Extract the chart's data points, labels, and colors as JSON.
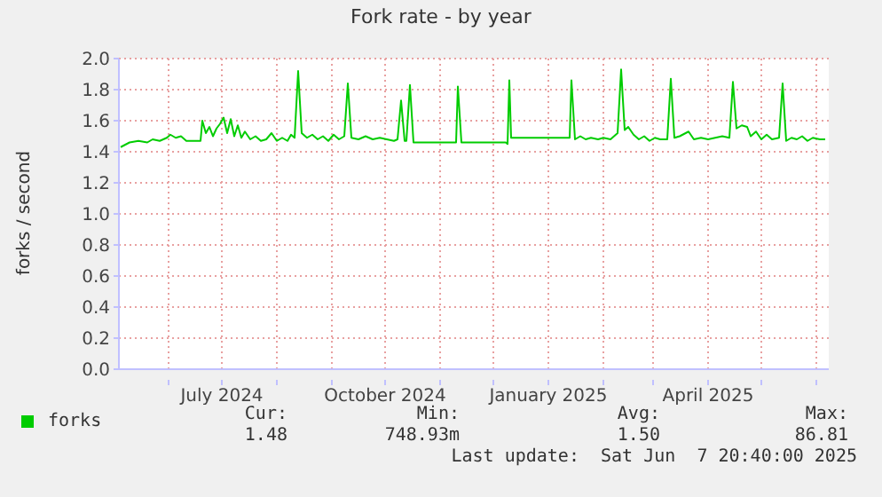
{
  "chart_data": {
    "type": "line",
    "title": "Fork rate - by year",
    "ylabel": "forks / second",
    "xlim": [
      "2024-05-04",
      "2025-06-08"
    ],
    "xticks": [
      {
        "value": "2024-06-01",
        "label": null
      },
      {
        "value": "2024-07-01",
        "label": "July 2024"
      },
      {
        "value": "2024-08-01",
        "label": null
      },
      {
        "value": "2024-09-01",
        "label": null
      },
      {
        "value": "2024-10-01",
        "label": "October 2024"
      },
      {
        "value": "2024-11-01",
        "label": null
      },
      {
        "value": "2024-12-01",
        "label": null
      },
      {
        "value": "2025-01-01",
        "label": "January 2025"
      },
      {
        "value": "2025-02-01",
        "label": null
      },
      {
        "value": "2025-03-01",
        "label": null
      },
      {
        "value": "2025-04-01",
        "label": "April 2025"
      },
      {
        "value": "2025-05-01",
        "label": null
      },
      {
        "value": "2025-06-01",
        "label": null
      }
    ],
    "ylim": [
      0,
      2
    ],
    "yticks": [
      {
        "value": 0,
        "label": "0.0"
      },
      {
        "value": 0.2,
        "label": "0.2"
      },
      {
        "value": 0.4,
        "label": "0.4"
      },
      {
        "value": 0.6,
        "label": "0.6"
      },
      {
        "value": 0.8,
        "label": "0.8"
      },
      {
        "value": 1,
        "label": "1.0"
      },
      {
        "value": 1.2,
        "label": "1.2"
      },
      {
        "value": 1.4,
        "label": "1.4"
      },
      {
        "value": 1.6,
        "label": "1.6"
      },
      {
        "value": 1.8,
        "label": "1.8"
      },
      {
        "value": 2,
        "label": "2.0"
      }
    ],
    "grid": true,
    "legend": "bottom left",
    "marker": "none",
    "line_style": "solid",
    "annotations": [
      "Cur:",
      "Min:",
      "Avg:",
      "Max:",
      "1.48",
      "748.93m",
      "1.50",
      "86.81",
      "Last update:  Sat Jun  7 20:40:00 2025"
    ],
    "series": [
      {
        "name": "forks",
        "color": "#00cc00",
        "x": [
          "2024-05-05",
          "2024-05-10",
          "2024-05-15",
          "2024-05-20",
          "2024-05-23",
          "2024-05-27",
          "2024-05-31",
          "2024-06-02",
          "2024-06-05",
          "2024-06-08",
          "2024-06-11",
          "2024-06-15",
          "2024-06-19",
          "2024-06-20",
          "2024-06-22",
          "2024-06-24",
          "2024-06-26",
          "2024-06-28",
          "2024-06-30",
          "2024-07-02",
          "2024-07-04",
          "2024-07-06",
          "2024-07-08",
          "2024-07-10",
          "2024-07-12",
          "2024-07-14",
          "2024-07-17",
          "2024-07-20",
          "2024-07-23",
          "2024-07-26",
          "2024-07-29",
          "2024-08-01",
          "2024-08-04",
          "2024-08-07",
          "2024-08-09",
          "2024-08-11",
          "2024-08-13",
          "2024-08-15",
          "2024-08-18",
          "2024-08-21",
          "2024-08-24",
          "2024-08-27",
          "2024-08-30",
          "2024-09-02",
          "2024-09-05",
          "2024-09-08",
          "2024-09-10",
          "2024-09-12",
          "2024-09-16",
          "2024-09-20",
          "2024-09-24",
          "2024-09-28",
          "2024-10-02",
          "2024-10-06",
          "2024-10-08",
          "2024-10-10",
          "2024-10-12",
          "2024-10-13",
          "2024-10-15",
          "2024-10-17",
          "2024-10-29",
          "2024-11-10",
          "2024-11-11",
          "2024-11-13",
          "2024-12-08",
          "2024-12-09",
          "2024-12-10",
          "2024-12-11",
          "2025-01-13",
          "2025-01-14",
          "2025-01-16",
          "2025-01-19",
          "2025-01-22",
          "2025-01-25",
          "2025-01-29",
          "2025-02-01",
          "2025-02-05",
          "2025-02-09",
          "2025-02-11",
          "2025-02-13",
          "2025-02-15",
          "2025-02-18",
          "2025-02-21",
          "2025-02-24",
          "2025-02-27",
          "2025-03-02",
          "2025-03-05",
          "2025-03-09",
          "2025-03-11",
          "2025-03-13",
          "2025-03-16",
          "2025-03-21",
          "2025-03-24",
          "2025-03-28",
          "2025-04-01",
          "2025-04-05",
          "2025-04-09",
          "2025-04-13",
          "2025-04-15",
          "2025-04-17",
          "2025-04-20",
          "2025-04-23",
          "2025-04-25",
          "2025-04-28",
          "2025-05-01",
          "2025-05-04",
          "2025-05-07",
          "2025-05-11",
          "2025-05-13",
          "2025-05-15",
          "2025-05-18",
          "2025-05-21",
          "2025-05-24",
          "2025-05-27",
          "2025-05-30",
          "2025-06-03",
          "2025-06-06"
        ],
        "values": [
          1.43,
          1.46,
          1.47,
          1.46,
          1.48,
          1.47,
          1.49,
          1.51,
          1.49,
          1.5,
          1.47,
          1.47,
          1.47,
          1.6,
          1.52,
          1.56,
          1.5,
          1.55,
          1.58,
          1.62,
          1.52,
          1.61,
          1.5,
          1.57,
          1.49,
          1.53,
          1.48,
          1.5,
          1.47,
          1.48,
          1.52,
          1.47,
          1.49,
          1.47,
          1.51,
          1.49,
          1.92,
          1.52,
          1.49,
          1.51,
          1.48,
          1.5,
          1.47,
          1.51,
          1.48,
          1.5,
          1.84,
          1.49,
          1.48,
          1.5,
          1.48,
          1.49,
          1.48,
          1.47,
          1.48,
          1.73,
          1.47,
          1.47,
          1.83,
          1.46,
          1.46,
          1.46,
          1.82,
          1.46,
          1.46,
          1.45,
          1.86,
          1.49,
          1.49,
          1.86,
          1.48,
          1.5,
          1.48,
          1.49,
          1.48,
          1.49,
          1.48,
          1.52,
          1.93,
          1.54,
          1.56,
          1.51,
          1.48,
          1.5,
          1.47,
          1.49,
          1.48,
          1.48,
          1.87,
          1.49,
          1.5,
          1.53,
          1.48,
          1.49,
          1.48,
          1.49,
          1.5,
          1.49,
          1.85,
          1.55,
          1.57,
          1.56,
          1.5,
          1.53,
          1.48,
          1.51,
          1.48,
          1.49,
          1.84,
          1.47,
          1.49,
          1.48,
          1.5,
          1.47,
          1.49,
          1.48,
          1.48
        ]
      }
    ]
  }
}
